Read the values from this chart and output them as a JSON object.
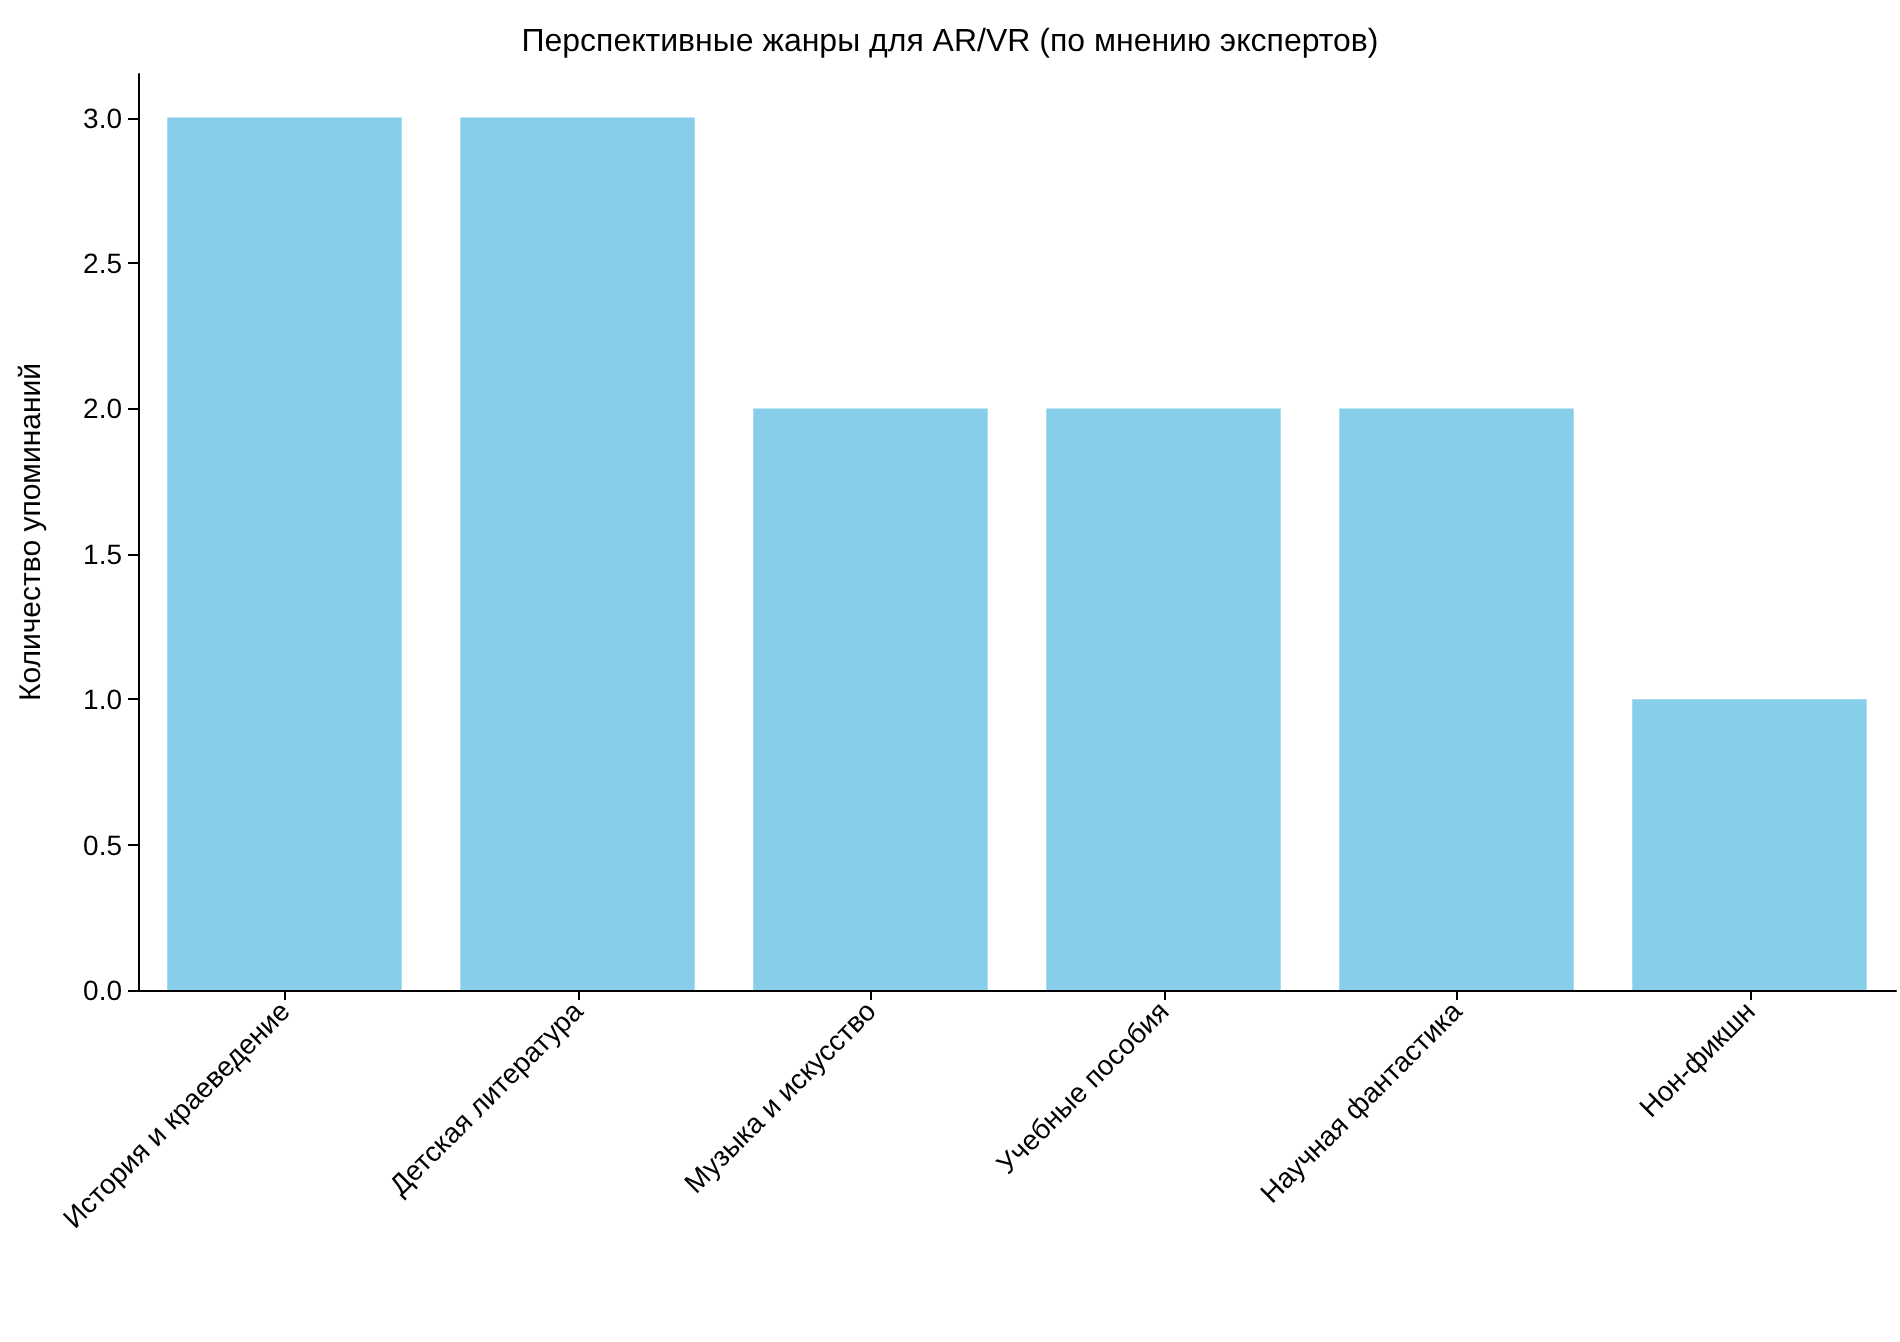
{
  "chart_data": {
    "type": "bar",
    "title": "Перспективные жанры для AR/VR (по мнению экспертов)",
    "ylabel": "Количество упоминаний",
    "categories": [
      "История и краеведение",
      "Детская литература",
      "Музыка и искусство",
      "Учебные пособия",
      "Научная фантастика",
      "Нон-фикшн"
    ],
    "values": [
      3,
      3,
      2,
      2,
      2,
      1
    ],
    "color": "#87ceeb",
    "ylim": [
      0,
      3.15
    ],
    "yticks": [
      {
        "value": 0,
        "label": "0.0"
      },
      {
        "value": 0.5,
        "label": "0.5"
      },
      {
        "value": 1,
        "label": "1.0"
      },
      {
        "value": 1.5,
        "label": "1.5"
      },
      {
        "value": 2,
        "label": "2.0"
      },
      {
        "value": 2.5,
        "label": "2.5"
      },
      {
        "value": 3,
        "label": "3.0"
      }
    ],
    "grid": false
  }
}
